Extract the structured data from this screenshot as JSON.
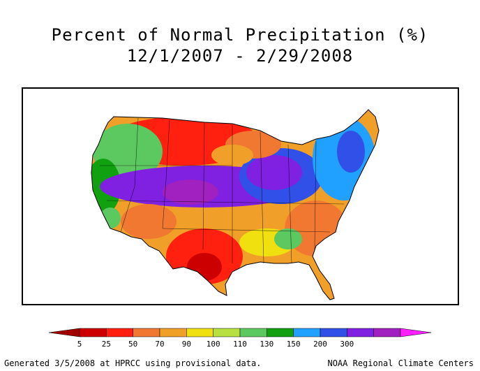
{
  "title": "Percent of Normal Precipitation (%)",
  "subtitle": "12/1/2007 - 2/29/2008",
  "legend": {
    "colors": [
      "#a00000",
      "#cc0000",
      "#ff2010",
      "#f07830",
      "#f0a028",
      "#f0e010",
      "#b8e040",
      "#5cc860",
      "#10a010",
      "#20a0ff",
      "#3050e8",
      "#8020e0",
      "#a020c0",
      "#ff20ff"
    ],
    "labels": [
      "5",
      "25",
      "50",
      "70",
      "90",
      "100",
      "110",
      "130",
      "150",
      "200",
      "300"
    ]
  },
  "footer": {
    "left": "Generated 3/5/2008 at HPRCC using provisional data.",
    "right": "NOAA Regional Climate Centers"
  }
}
